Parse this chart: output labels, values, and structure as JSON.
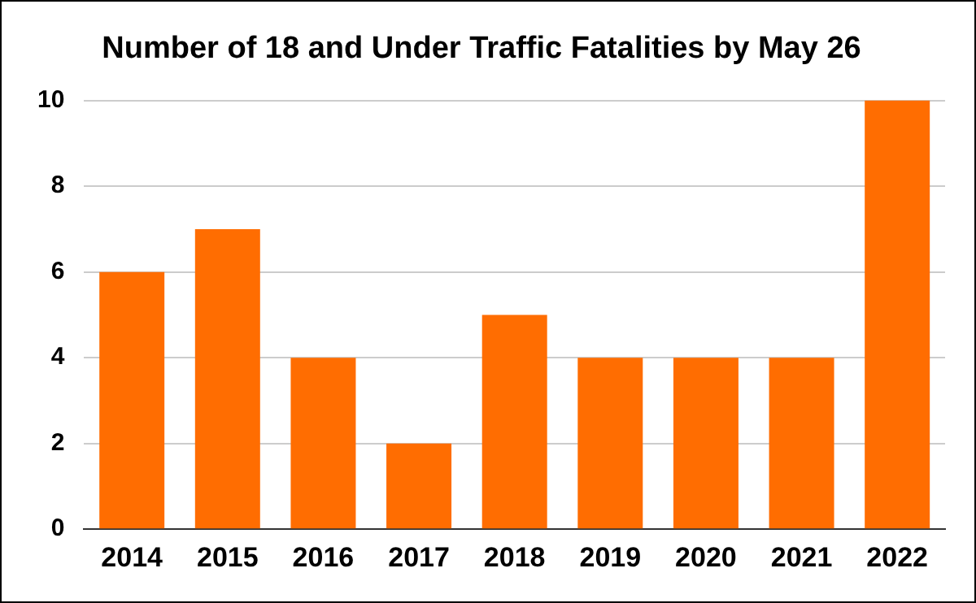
{
  "chart_data": {
    "type": "bar",
    "title": "Number of 18 and Under Traffic Fatalities by May 26",
    "categories": [
      "2014",
      "2015",
      "2016",
      "2017",
      "2018",
      "2019",
      "2020",
      "2021",
      "2022"
    ],
    "values": [
      6,
      7,
      4,
      2,
      5,
      4,
      4,
      4,
      10
    ],
    "color": "#ff6d01",
    "ylim": [
      0,
      10
    ],
    "yticks": [
      0,
      2,
      4,
      6,
      8,
      10
    ],
    "grid": "y",
    "legend": false
  }
}
